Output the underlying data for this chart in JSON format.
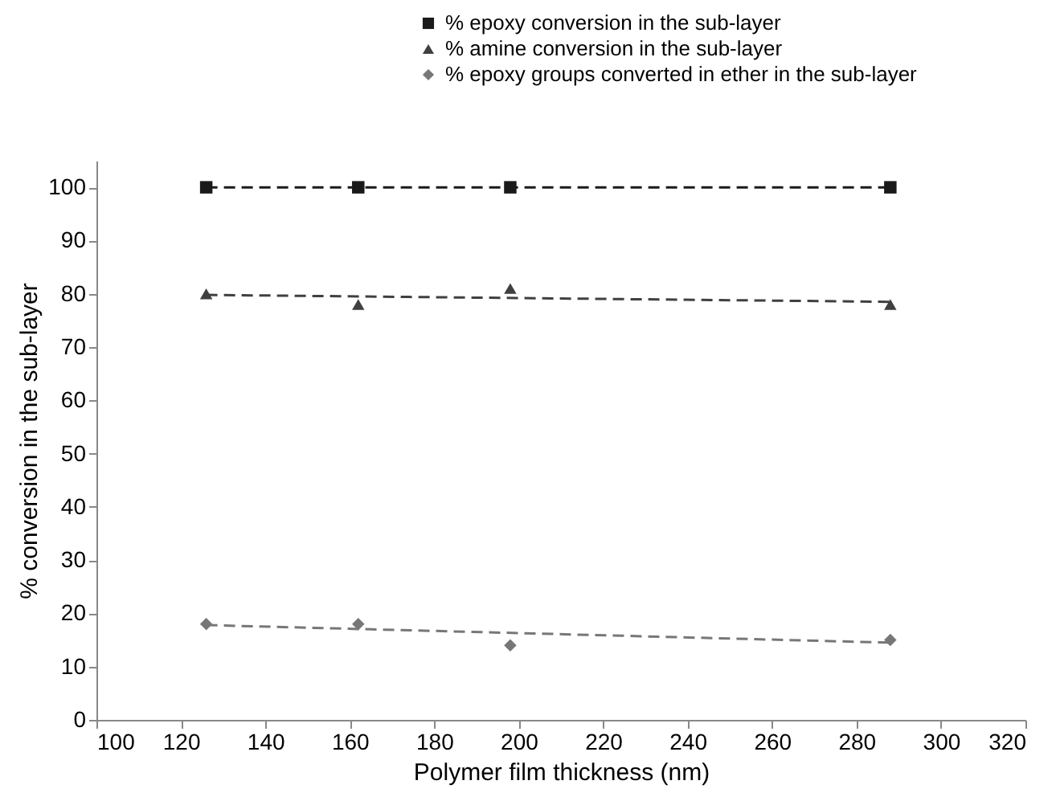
{
  "chart_data": {
    "type": "scatter",
    "xlabel": "Polymer film thickness (nm)",
    "ylabel": "% conversion in the sub-layer",
    "xlim": [
      100,
      320
    ],
    "xticks": [
      100,
      120,
      140,
      160,
      180,
      200,
      220,
      240,
      260,
      280,
      300,
      320
    ],
    "ylim": [
      0,
      105
    ],
    "yticks": [
      0,
      10,
      20,
      30,
      40,
      50,
      60,
      70,
      80,
      90,
      100
    ],
    "grid": false,
    "legend": "top",
    "series": [
      {
        "name": "% epoxy conversion in the sub-layer",
        "type": "scatter",
        "marker": "square",
        "color": "#1a1a1a",
        "x": [
          126,
          162,
          198,
          288
        ],
        "values": [
          100,
          100,
          100,
          100
        ]
      },
      {
        "name": "% amine conversion in the sub-layer",
        "type": "scatter",
        "marker": "triangle",
        "color": "#404040",
        "x": [
          126,
          162,
          198,
          288
        ],
        "values": [
          80,
          78,
          81,
          78
        ]
      },
      {
        "name": "% epoxy groups converted in ether in the sub-layer",
        "type": "scatter",
        "marker": "diamond",
        "color": "#777777",
        "x": [
          126,
          162,
          198,
          288
        ],
        "values": [
          18,
          18,
          14,
          15
        ]
      },
      {
        "type": "line",
        "line_style": "dashed",
        "marker": "none",
        "color": "#1a1a1a",
        "x": [
          126,
          288
        ],
        "values": [
          100,
          100
        ]
      },
      {
        "type": "line",
        "line_style": "dashed",
        "marker": "none",
        "color": "#404040",
        "x": [
          126,
          288
        ],
        "values": [
          79.8,
          78.5
        ]
      },
      {
        "type": "line",
        "line_style": "dashed",
        "marker": "none",
        "color": "#777777",
        "x": [
          126,
          288
        ],
        "values": [
          17.8,
          14.5
        ]
      }
    ]
  }
}
